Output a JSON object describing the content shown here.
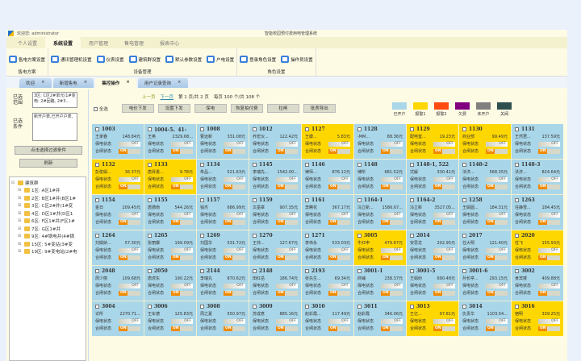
{
  "header": {
    "welcome": "欢迎您: administrator",
    "app_title": "智能校园预付费用电管理系统",
    "collapse_label": "⤡ ⌄"
  },
  "menu_tabs": [
    {
      "label": "个人设置"
    },
    {
      "label": "系统设置",
      "active": true
    },
    {
      "label": "用户管理"
    },
    {
      "label": "售电管理"
    },
    {
      "label": "报表中心"
    }
  ],
  "ribbon": [
    {
      "group": "售电方案",
      "items": [
        "售电方案设置"
      ]
    },
    {
      "group": "设备管理",
      "items": [
        "通讯管理机设置",
        "仪表设置",
        "建筑群设置",
        "默认参数设置",
        "户电设置"
      ]
    },
    {
      "group": "角色设置",
      "items": [
        "登录角色设置",
        "操作员设置"
      ]
    }
  ],
  "doc_tabs": [
    {
      "label": "欢迎"
    },
    {
      "label": "新增售电"
    },
    {
      "label": "集控操作",
      "active": true
    },
    {
      "label": "用户记录查询"
    }
  ],
  "left": {
    "range_label": "已选范围",
    "range_value": "3区: C区2#单元(1#变电: 2#回路, 2#3...",
    "cond_label": "已选条件",
    "cond_value": "新开户表,已开户户表,",
    "filter_button": "点击选择过滤条件",
    "refresh_button": "刷新",
    "tree": {
      "root": "建筑群",
      "children": [
        "1区: A区1#井",
        "2区: B区1#井(B区1#",
        "3区: C区2#井(1#变",
        "4区: D区1#井(D区1",
        "6区: F区1#井(F区1#",
        "7区: G区1#井",
        "9区: 4#锅电井(4#锅",
        "15区: 5#变站(3#变",
        "19区: 9#变电站(2#电"
      ]
    }
  },
  "pager": {
    "prev": "上一页",
    "next": "下一页",
    "page_text": "第 1 页/共 2 页",
    "per_page_text": "每页 100 个/共 108 个"
  },
  "toolbar": {
    "select_all": "全选",
    "buttons": [
      "电价下发",
      "设置下发",
      "保电",
      "恢复拍付费",
      "拉闸",
      "批表导出"
    ]
  },
  "legend": [
    {
      "label": "已开户",
      "color": "#a9d6e8"
    },
    {
      "label": "报警1",
      "color": "#ffd700"
    },
    {
      "label": "报警2",
      "color": "#ff4a10"
    },
    {
      "label": "欠费",
      "color": "#800080"
    },
    {
      "label": "未开户",
      "color": "#808080"
    },
    {
      "label": "关阀",
      "color": "#2f4f4f"
    }
  ],
  "cell_labels": {
    "power_keep": "保电状态",
    "switch": "合闸状态",
    "off": "OFF",
    "on": "ON"
  },
  "meters": [
    {
      "id": "1003",
      "name": "王家春",
      "amount": "148.84元",
      "s": "open"
    },
    {
      "id": "1004-5、41-",
      "name": "王英",
      "amount": "2329.68...",
      "s": "open"
    },
    {
      "id": "1008",
      "name": "曹远新",
      "amount": "331.08元",
      "s": "open"
    },
    {
      "id": "1012",
      "name": "乔宏仪...",
      "amount": "122.42元",
      "s": "open"
    },
    {
      "id": "1127",
      "name": "王康...",
      "amount": "5.83元",
      "s": "alarm1"
    },
    {
      "id": "1128",
      "name": "-MM...",
      "amount": "88.36元",
      "s": "open"
    },
    {
      "id": "1129",
      "name": "配电室...",
      "amount": "19.23元",
      "s": "alarm1"
    },
    {
      "id": "1130",
      "name": "商业部",
      "amount": "99.49元",
      "s": "alarm1"
    },
    {
      "id": "1131",
      "name": "王然君...",
      "amount": "137.59元",
      "s": "open"
    },
    {
      "id": "1132",
      "name": "彭俊娟...",
      "amount": "36.37元",
      "s": "alarm1"
    },
    {
      "id": "1133",
      "name": "唐昇勇...",
      "amount": "9.78元",
      "s": "alarm1"
    },
    {
      "id": "1134",
      "name": "朱品...",
      "amount": "521.63元",
      "s": "open"
    },
    {
      "id": "1145",
      "name": "李瑞先...",
      "amount": "1542.00...",
      "s": "open"
    },
    {
      "id": "1146",
      "name": "律师...",
      "amount": "876.12元",
      "s": "open"
    },
    {
      "id": "1148",
      "name": "律所",
      "amount": "681.52元",
      "s": "open"
    },
    {
      "id": "1148-1, 522",
      "name": "式解",
      "amount": "330.41元",
      "s": "open"
    },
    {
      "id": "1148-2",
      "name": "法济...",
      "amount": "568.35元",
      "s": "open"
    },
    {
      "id": "1148-3",
      "name": "法济...",
      "amount": "824.64元",
      "s": "open"
    },
    {
      "id": "1154",
      "name": "金日",
      "amount": "209.45元",
      "s": "open"
    },
    {
      "id": "1155",
      "name": "唐德南",
      "amount": "544.26元",
      "s": "open"
    },
    {
      "id": "1157",
      "name": "钱杰",
      "amount": "686.99元",
      "s": "open"
    },
    {
      "id": "1159",
      "name": "文墨章",
      "amount": "907.35元",
      "s": "open"
    },
    {
      "id": "1161",
      "name": "李腾花",
      "amount": "367.17元",
      "s": "open"
    },
    {
      "id": "1164-1",
      "name": "冯立新...",
      "amount": "1586.67...",
      "s": "open"
    },
    {
      "id": "1164-2",
      "name": "冯立新",
      "amount": "3527.05...",
      "s": "open"
    },
    {
      "id": "1258",
      "name": "王娟圆...",
      "amount": "184.31元",
      "s": "open"
    },
    {
      "id": "1263",
      "name": "任静雪...",
      "amount": "184.45元",
      "s": "open"
    },
    {
      "id": "1264",
      "name": "刘娟娇...",
      "amount": "57.30元",
      "s": "open"
    },
    {
      "id": "1265",
      "name": "张丽娜",
      "amount": "199.09元",
      "s": "open"
    },
    {
      "id": "1269",
      "name": "刘国华",
      "amount": "531.72元",
      "s": "open"
    },
    {
      "id": "1270",
      "name": "王帅...",
      "amount": "127.67元",
      "s": "open"
    },
    {
      "id": "1271",
      "name": "李伟永",
      "amount": "533.03元",
      "s": "open"
    },
    {
      "id": "3005",
      "name": "牛红申",
      "amount": "479.87元",
      "s": "alarm1"
    },
    {
      "id": "2014",
      "name": "安思龙",
      "amount": "202.95元",
      "s": "open"
    },
    {
      "id": "2017",
      "name": "任大明",
      "amount": "121.40元",
      "s": "open"
    },
    {
      "id": "2020",
      "name": "任飞",
      "amount": "155.93元",
      "s": "alarm1"
    },
    {
      "id": "2048",
      "name": "周少丽",
      "amount": "109.68元",
      "s": "open"
    },
    {
      "id": "2050",
      "name": "唐虎东",
      "amount": "190.22元",
      "s": "open"
    },
    {
      "id": "2144",
      "name": "李瑞丸",
      "amount": "870.62元",
      "s": "open"
    },
    {
      "id": "2148",
      "name": "田红岳",
      "amount": "186.74元",
      "s": "open"
    },
    {
      "id": "2193",
      "name": "张先生...",
      "amount": "69.34元",
      "s": "open"
    },
    {
      "id": "3001-1",
      "name": "商铺",
      "amount": "238.37元",
      "s": "open"
    },
    {
      "id": "3001-5",
      "name": "王娟纷",
      "amount": "690.48元",
      "s": "open"
    },
    {
      "id": "3001-6",
      "name": "孙长亭...",
      "amount": "293.15元",
      "s": "open"
    },
    {
      "id": "3002",
      "name": "食宾楼",
      "amount": "409.88元",
      "s": "open"
    },
    {
      "id": "3004",
      "name": "诊所",
      "amount": "2270.71...",
      "s": "open"
    },
    {
      "id": "3006",
      "name": "王车德",
      "amount": "125.83元",
      "s": "open"
    },
    {
      "id": "3008",
      "name": "周之夏",
      "amount": "550.97元",
      "s": "open"
    },
    {
      "id": "3009",
      "name": "苏成意",
      "amount": "885.16元",
      "s": "open"
    },
    {
      "id": "3010",
      "name": "赵彩霞...",
      "amount": "117.49元",
      "s": "open"
    },
    {
      "id": "3011",
      "name": "赵彩霞",
      "amount": "346.06元",
      "s": "open"
    },
    {
      "id": "3013",
      "name": "王亿...",
      "amount": "97.81元",
      "s": "alarm1"
    },
    {
      "id": "3014",
      "name": "仇贵华",
      "amount": "1103.54...",
      "s": "open"
    },
    {
      "id": "3016",
      "name": "宿明",
      "amount": "339.25元",
      "s": "alarm1"
    }
  ]
}
